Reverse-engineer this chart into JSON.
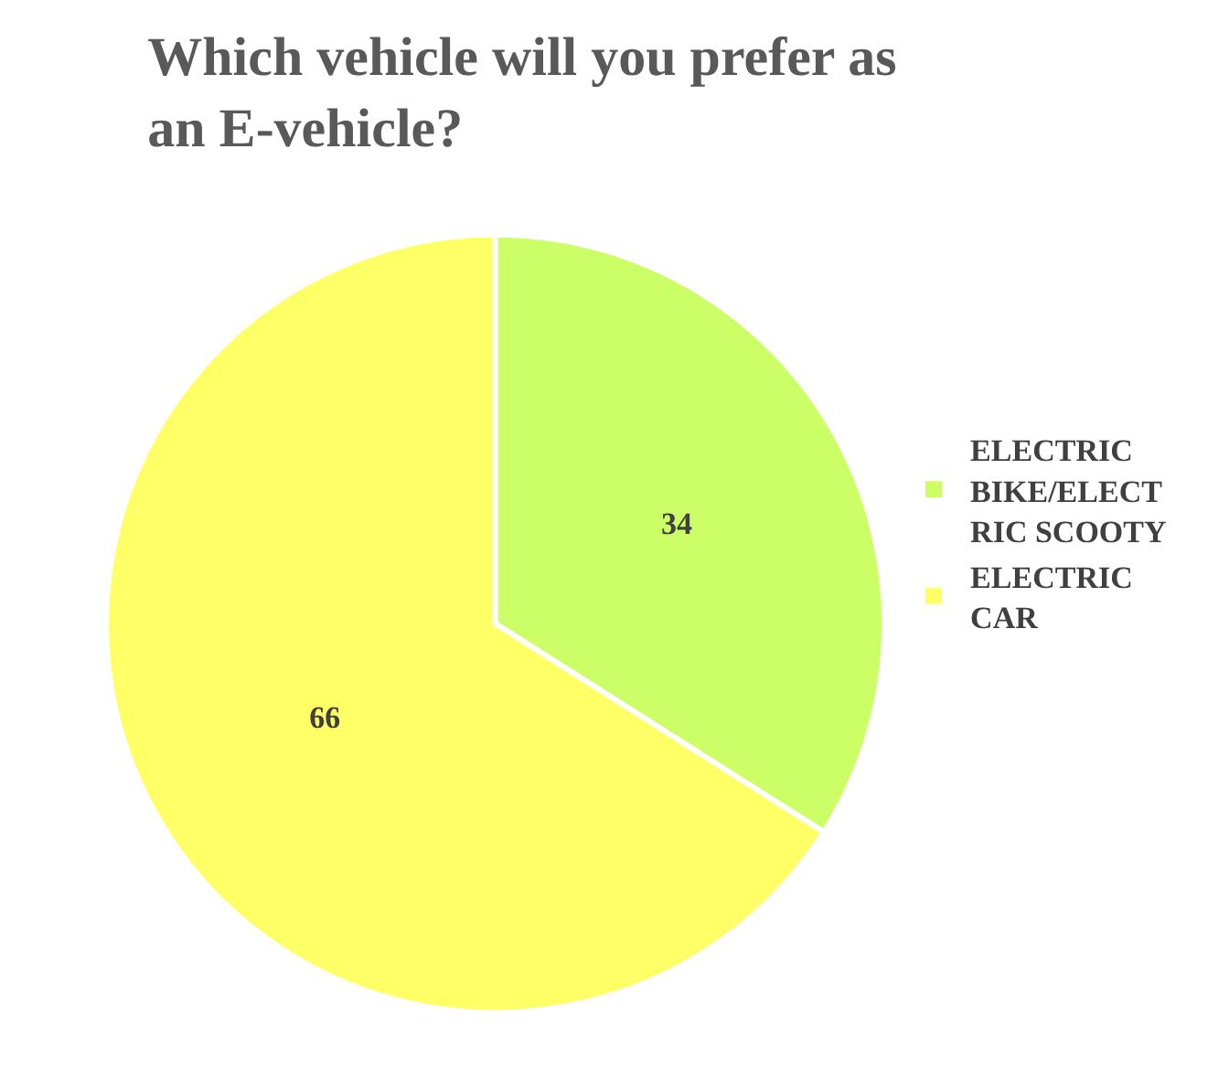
{
  "chart_data": {
    "type": "pie",
    "title": "Which vehicle will you prefer as an E-vehicle?",
    "categories": [
      "ELECTRIC BIKE/ELECTRIC SCOOTY",
      "ELECTRIC CAR"
    ],
    "values": [
      34,
      66
    ],
    "colors": [
      "#ccff66",
      "#ffff66"
    ],
    "data_labels": true,
    "legend": "right"
  }
}
